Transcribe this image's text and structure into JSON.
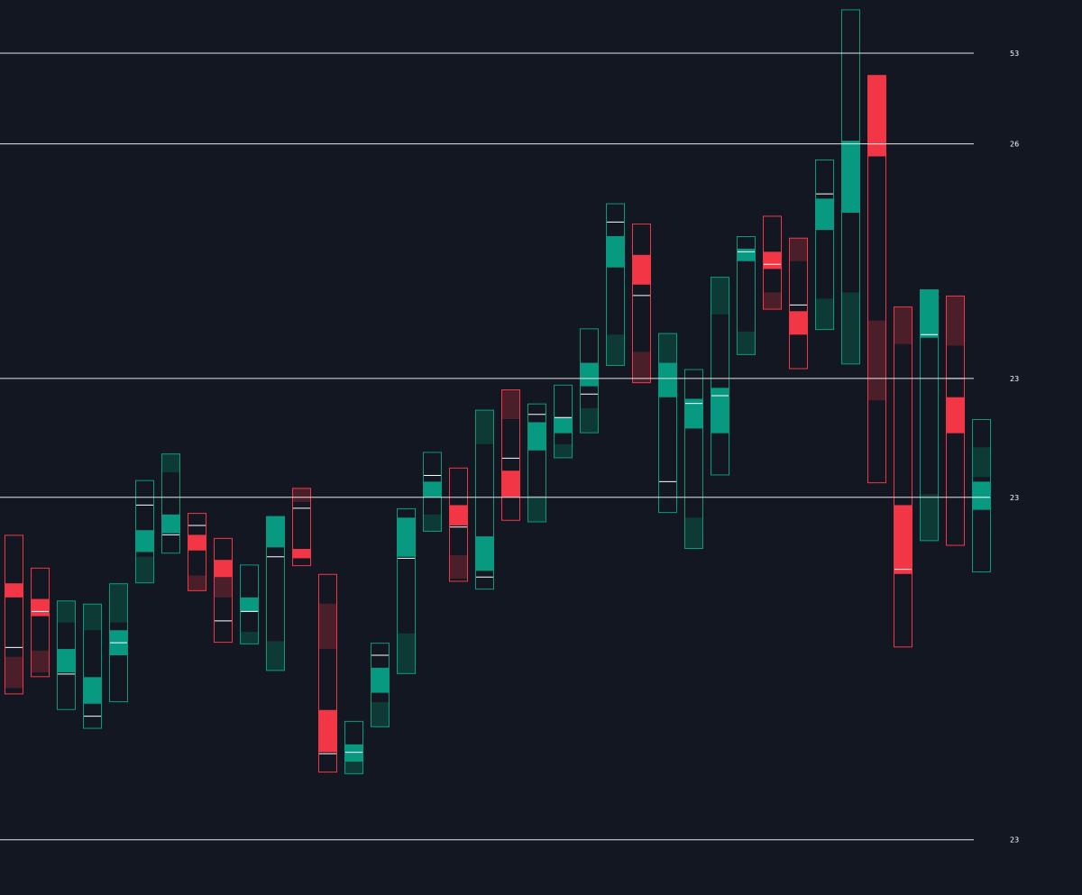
{
  "colors": {
    "background": "#131722",
    "bull": "#089981",
    "bull_dim": "#0e3a36",
    "bear": "#f23645",
    "bear_dim": "#4a1f2a",
    "poc": "#ffffff",
    "level": "#e6e6e6",
    "label": "#ffffff"
  },
  "levels": [
    {
      "price": 83.6,
      "label": "53"
    },
    {
      "price": 77.8,
      "label": "26"
    },
    {
      "price": 62.8,
      "label": "23"
    },
    {
      "price": 55.2,
      "label": "23"
    },
    {
      "price": 33.3,
      "label": "23"
    }
  ],
  "chart_data": {
    "type": "candlestick-footprint",
    "title": "",
    "xlabel": "",
    "ylabel": "",
    "ylim": [
      30,
      87
    ],
    "grid": false,
    "candles": [
      {
        "high": 52.8,
        "low": 42.6,
        "dir": "bear",
        "body": [
          48.8,
          49.7
        ],
        "dim": [
          43,
          45
        ],
        "poc": 45.6
      },
      {
        "high": 50.7,
        "low": 43.7,
        "dir": "bear",
        "body": [
          48.7,
          47.6
        ],
        "dim": [
          44,
          45.4
        ],
        "poc": 47.9
      },
      {
        "high": 48.6,
        "low": 41.6,
        "dir": "bull",
        "body": [
          44,
          45.5
        ],
        "dim": [
          47.2,
          48.6
        ],
        "poc": 43.9
      },
      {
        "high": 48.4,
        "low": 40.4,
        "dir": "bull",
        "body": [
          42,
          43.7
        ],
        "dim": [
          46.7,
          48.4
        ],
        "poc": 41.2
      },
      {
        "high": 49.7,
        "low": 42.1,
        "dir": "bull",
        "body": [
          45.1,
          46.7
        ],
        "dim": [
          47.2,
          49.7
        ],
        "poc": 45.9
      },
      {
        "high": 56.3,
        "low": 49.7,
        "dir": "bull",
        "body": [
          51.7,
          53.1
        ],
        "dim": [
          49.7,
          51.4
        ],
        "poc": 54.7
      },
      {
        "high": 58,
        "low": 51.6,
        "dir": "bull",
        "body": [
          52.9,
          54.1
        ],
        "dim": [
          56.8,
          58
        ],
        "poc": 52.8
      },
      {
        "high": 54.2,
        "low": 49.2,
        "dir": "bear",
        "body": [
          52.8,
          51.8
        ],
        "dim": [
          49.2,
          50.2
        ],
        "poc": 53.4
      },
      {
        "high": 52.6,
        "low": 45.9,
        "dir": "bear",
        "body": [
          51.2,
          50.1
        ],
        "dim": [
          48.8,
          50.1
        ],
        "poc": 47.3
      },
      {
        "high": 50.9,
        "low": 45.8,
        "dir": "bull",
        "body": [
          47.9,
          48.8
        ],
        "dim": [
          45.8,
          46.6
        ],
        "poc": 47.9
      },
      {
        "high": 53.9,
        "low": 44.1,
        "dir": "bull",
        "body": [
          52,
          54
        ],
        "dim": [
          44.1,
          46
        ],
        "poc": 51.4
      },
      {
        "high": 55.8,
        "low": 50.8,
        "dir": "bear",
        "body": [
          51.9,
          51.3
        ],
        "dim": [
          54.9,
          55.8
        ],
        "poc": 54.5
      },
      {
        "high": 50.3,
        "low": 37.6,
        "dir": "bear",
        "body": [
          41.6,
          38.9
        ],
        "dim": [
          45.5,
          48.4
        ],
        "poc": 38.8
      },
      {
        "high": 40.9,
        "low": 37.5,
        "dir": "bull",
        "body": [
          39.4,
          38.3
        ],
        "dim": [
          37.5,
          38.5
        ],
        "poc": 38.9
      },
      {
        "high": 45.9,
        "low": 40.5,
        "dir": "bull",
        "body": [
          42.7,
          44.3
        ],
        "dim": [
          40.5,
          42.1
        ],
        "poc": 45.1
      },
      {
        "high": 54.5,
        "low": 43.9,
        "dir": "bull",
        "body": [
          51.4,
          53.9
        ],
        "dim": [
          43.9,
          46.5
        ],
        "poc": 51.3
      },
      {
        "high": 58.1,
        "low": 53,
        "dir": "bull",
        "body": [
          55.2,
          56.2
        ],
        "dim": [
          53,
          54.1
        ],
        "poc": 56.6
      },
      {
        "high": 57.1,
        "low": 49.8,
        "dir": "bear",
        "body": [
          54.7,
          53.4
        ],
        "dim": [
          50,
          51.5
        ],
        "poc": 53.3
      },
      {
        "high": 60.8,
        "low": 49.3,
        "dir": "bull",
        "body": [
          50.5,
          52.7
        ],
        "dim": [
          58.6,
          60.8
        ],
        "poc": 50.1
      },
      {
        "high": 62.1,
        "low": 53.7,
        "dir": "bear",
        "body": [
          55.2,
          56.9
        ],
        "dim": [
          60.2,
          62.1
        ],
        "poc": 57.7
      },
      {
        "high": 61.2,
        "low": 53.6,
        "dir": "bull",
        "body": [
          58.2,
          60
        ],
        "dim": [
          53.6,
          55.3
        ],
        "poc": 60.5
      },
      {
        "high": 62.4,
        "low": 57.7,
        "dir": "bull",
        "body": [
          59.3,
          60.3
        ],
        "dim": [
          57.7,
          58.6
        ],
        "poc": 60.3
      },
      {
        "high": 66,
        "low": 59.3,
        "dir": "bull",
        "body": [
          62.3,
          63.8
        ],
        "dim": [
          59.3,
          60.9
        ],
        "poc": 61.8
      },
      {
        "high": 74,
        "low": 63.6,
        "dir": "bull",
        "body": [
          69.9,
          71.9
        ],
        "dim": [
          63.6,
          65.6
        ],
        "poc": 72.8
      },
      {
        "high": 72.7,
        "low": 62.5,
        "dir": "bear",
        "body": [
          70.7,
          68.8
        ],
        "dim": [
          62.5,
          64.5
        ],
        "poc": 68.1
      },
      {
        "high": 65.7,
        "low": 54.2,
        "dir": "bull",
        "body": [
          61.6,
          63.8
        ],
        "dim": [
          63.8,
          65.7
        ],
        "poc": 56.2
      },
      {
        "high": 63.4,
        "low": 51.9,
        "dir": "bull",
        "body": [
          59.6,
          61.5
        ],
        "dim": [
          51.9,
          53.9
        ],
        "poc": 61.2
      },
      {
        "high": 69.3,
        "low": 56.6,
        "dir": "bull",
        "body": [
          59.3,
          62.2
        ],
        "dim": [
          66.9,
          69.3
        ],
        "poc": 61.7
      },
      {
        "high": 71.9,
        "low": 64.3,
        "dir": "bull",
        "body": [
          70.3,
          71.1
        ],
        "dim": [
          64.3,
          65.8
        ],
        "poc": 70.9
      },
      {
        "high": 73.2,
        "low": 67.2,
        "dir": "bear",
        "body": [
          70.9,
          69.8
        ],
        "dim": [
          67.2,
          68.3
        ],
        "poc": 70.1
      },
      {
        "high": 71.8,
        "low": 63.4,
        "dir": "bear",
        "body": [
          67.1,
          65.6
        ],
        "dim": [
          70.3,
          71.8
        ],
        "poc": 67.5
      },
      {
        "high": 76.8,
        "low": 65.9,
        "dir": "bull",
        "body": [
          72.3,
          74.3
        ],
        "dim": [
          65.9,
          67.9
        ],
        "poc": 74.6
      },
      {
        "high": 86.4,
        "low": 63.7,
        "dir": "bull",
        "body": [
          73.4,
          78
        ],
        "dim": [
          63.7,
          68.3
        ],
        "poc": 83.6
      },
      {
        "high": 82.2,
        "low": 56.1,
        "dir": "bear",
        "body": [
          82.2,
          77
        ],
        "dim": [
          61.4,
          66.5
        ],
        "poc": 77.8
      },
      {
        "high": 67.4,
        "low": 45.6,
        "dir": "bear",
        "body": [
          54.7,
          50.3
        ],
        "dim": [
          65,
          67.4
        ],
        "poc": 50.6
      },
      {
        "high": 68.5,
        "low": 52.4,
        "dir": "bull",
        "body": [
          65.4,
          68.5
        ],
        "dim": [
          52.4,
          55.4
        ],
        "poc": 65.6
      },
      {
        "high": 68.1,
        "low": 52.1,
        "dir": "bear",
        "body": [
          61.6,
          59.3
        ],
        "dim": [
          64.9,
          68.1
        ],
        "poc": 62.8
      },
      {
        "high": 60.2,
        "low": 50.4,
        "dir": "bull",
        "body": [
          54.4,
          56.2
        ],
        "dim": [
          56.5,
          58.4
        ],
        "poc": 55.2
      }
    ]
  }
}
